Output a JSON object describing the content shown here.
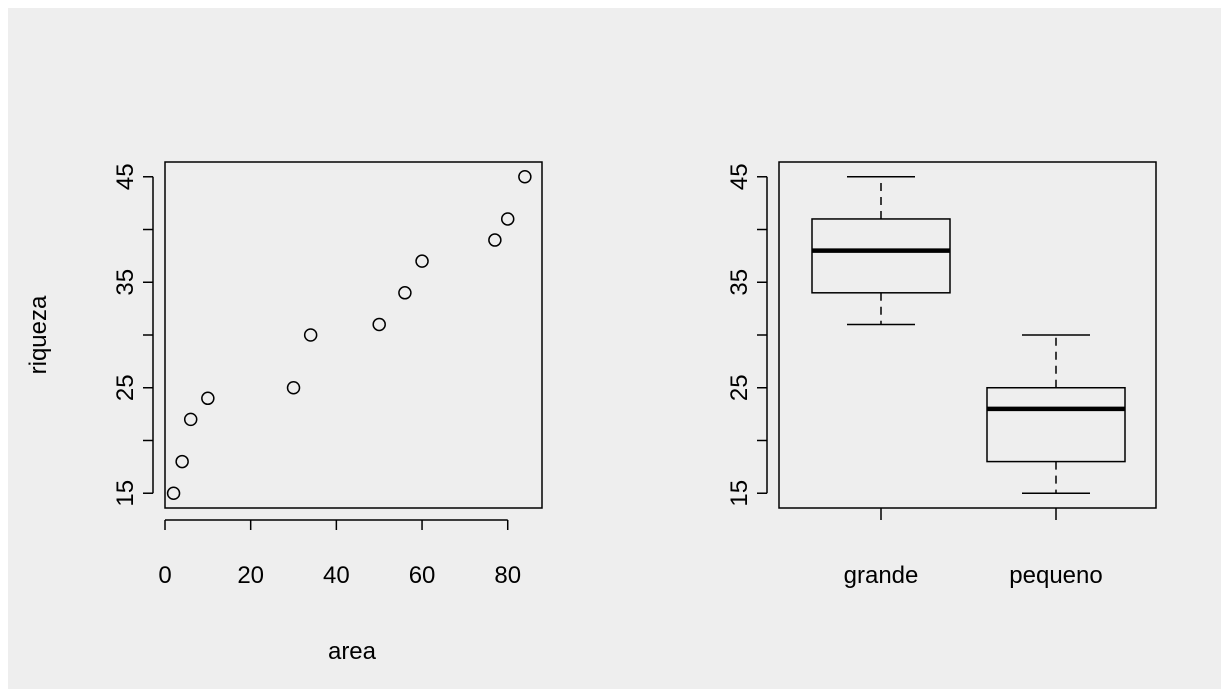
{
  "chart_data": [
    {
      "type": "scatter",
      "xlabel": "area",
      "ylabel": "riqueza",
      "xlim": [
        0,
        88
      ],
      "ylim": [
        13.6,
        46.4
      ],
      "x_ticks": [
        0,
        20,
        40,
        60,
        80
      ],
      "y_ticks": [
        15,
        20,
        25,
        30,
        35,
        40,
        45
      ],
      "y_tick_labels": [
        "15",
        "",
        "25",
        "",
        "35",
        "",
        "45"
      ],
      "x_tick_labels": [
        "0",
        "20",
        "40",
        "60",
        "80"
      ],
      "points": [
        {
          "x": 2,
          "y": 15
        },
        {
          "x": 4,
          "y": 18
        },
        {
          "x": 6,
          "y": 22
        },
        {
          "x": 10,
          "y": 24
        },
        {
          "x": 30,
          "y": 25
        },
        {
          "x": 34,
          "y": 30
        },
        {
          "x": 50,
          "y": 31
        },
        {
          "x": 56,
          "y": 34
        },
        {
          "x": 60,
          "y": 37
        },
        {
          "x": 77,
          "y": 39
        },
        {
          "x": 80,
          "y": 41
        },
        {
          "x": 84,
          "y": 45
        }
      ]
    },
    {
      "type": "box",
      "ylim": [
        13.6,
        46.4
      ],
      "y_ticks": [
        15,
        20,
        25,
        30,
        35,
        40,
        45
      ],
      "y_tick_labels": [
        "15",
        "",
        "25",
        "",
        "35",
        "",
        "45"
      ],
      "categories": [
        "grande",
        "pequeno"
      ],
      "boxes": [
        {
          "name": "grande",
          "min": 31,
          "q1": 34,
          "median": 38,
          "q3": 41,
          "max": 45
        },
        {
          "name": "pequeno",
          "min": 15,
          "q1": 18,
          "median": 23,
          "q3": 25,
          "max": 30
        }
      ]
    }
  ]
}
